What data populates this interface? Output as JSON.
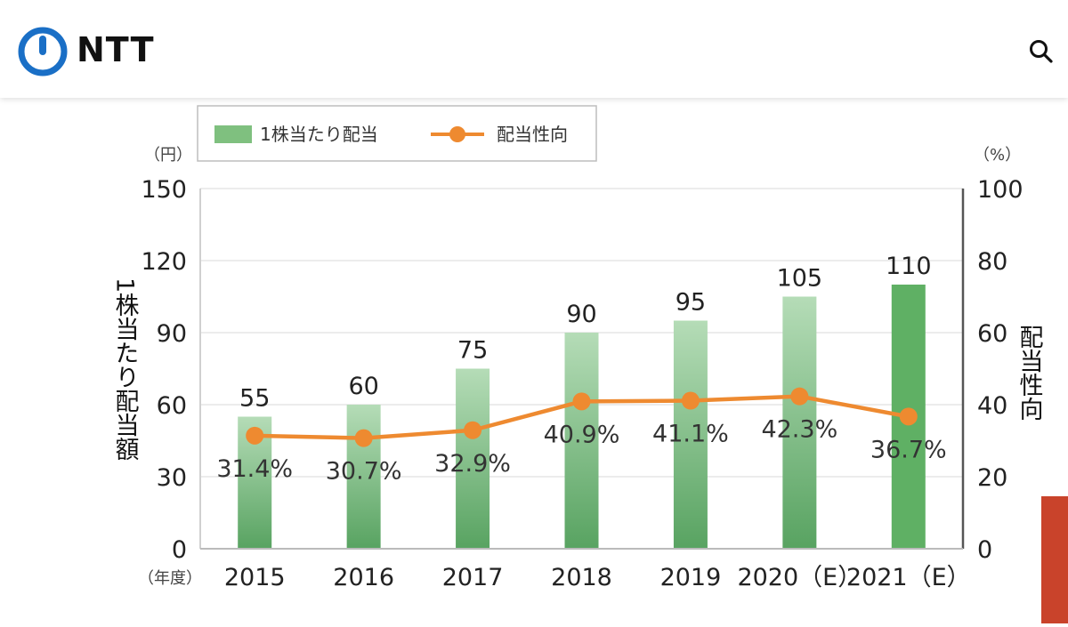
{
  "header": {
    "logo_text": "NTT",
    "logo_icon": "ntt-logo-icon",
    "search_icon": "search-icon"
  },
  "colors": {
    "brand_blue": "#1a6fc6",
    "bar_green_top": "#b5dcb7",
    "bar_green_bottom": "#58a361",
    "bar_green_highlight": "#5fb064",
    "line_orange": "#ee8a30",
    "accent_red": "#c9432b"
  },
  "chart_data": {
    "type": "bar+line",
    "left_unit": "（円）",
    "right_unit": "（%）",
    "ylabel": "1株当たり配当額",
    "y2label": "配当性向",
    "xunit": "（年度）",
    "categories": [
      "2015",
      "2016",
      "2017",
      "2018",
      "2019",
      "2020（E）",
      "2021（E）"
    ],
    "ylim": [
      0,
      150
    ],
    "y2lim": [
      0,
      100
    ],
    "yticks": [
      "0",
      "30",
      "60",
      "90",
      "120",
      "150"
    ],
    "y2ticks": [
      "0",
      "20",
      "40",
      "60",
      "80",
      "100"
    ],
    "legend": {
      "bar": "1株当たり配当",
      "line": "配当性向",
      "placement": "top-left"
    },
    "series": [
      {
        "name": "1株当たり配当",
        "type": "bar",
        "values": [
          55,
          60,
          75,
          90,
          95,
          105,
          110
        ],
        "labels": [
          "55",
          "60",
          "75",
          "90",
          "95",
          "105",
          "110"
        ]
      },
      {
        "name": "配当性向",
        "type": "line",
        "values": [
          31.4,
          30.7,
          32.9,
          40.9,
          41.1,
          42.3,
          36.7
        ],
        "labels": [
          "31.4%",
          "30.7%",
          "32.9%",
          "40.9%",
          "41.1%",
          "42.3%",
          "36.7%"
        ]
      }
    ],
    "grid": true
  }
}
